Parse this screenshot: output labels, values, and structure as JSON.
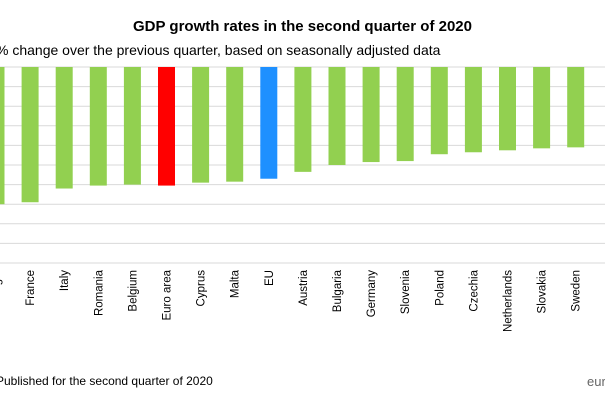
{
  "chart_data": {
    "type": "bar",
    "title": "GDP growth rates in the second quarter of 2020",
    "subtitle": "% change over the previous quarter, based on seasonally adjusted data",
    "footnote": "Published for the second quarter of 2020",
    "source": "eurostat",
    "categories": [
      "Portugal",
      "France",
      "Italy",
      "Romania",
      "Belgium",
      "Euro area",
      "Cyprus",
      "Malta",
      "EU",
      "Austria",
      "Bulgaria",
      "Germany",
      "Slovenia",
      "Poland",
      "Czechia",
      "Netherlands",
      "Slovakia",
      "Sweden"
    ],
    "values": [
      -14.0,
      -13.8,
      -12.4,
      -12.1,
      -12.0,
      -12.1,
      -11.8,
      -11.7,
      -11.4,
      -10.7,
      -10.0,
      -9.7,
      -9.6,
      -8.9,
      -8.7,
      -8.5,
      -8.3,
      -8.2
    ],
    "highlight_colors": {
      "Euro area": "#ff0000",
      "EU": "#1e90ff"
    },
    "default_color": "#92d050",
    "gridlines": true,
    "xlabel": "",
    "ylabel": "",
    "ylim": [
      -20,
      0
    ]
  }
}
